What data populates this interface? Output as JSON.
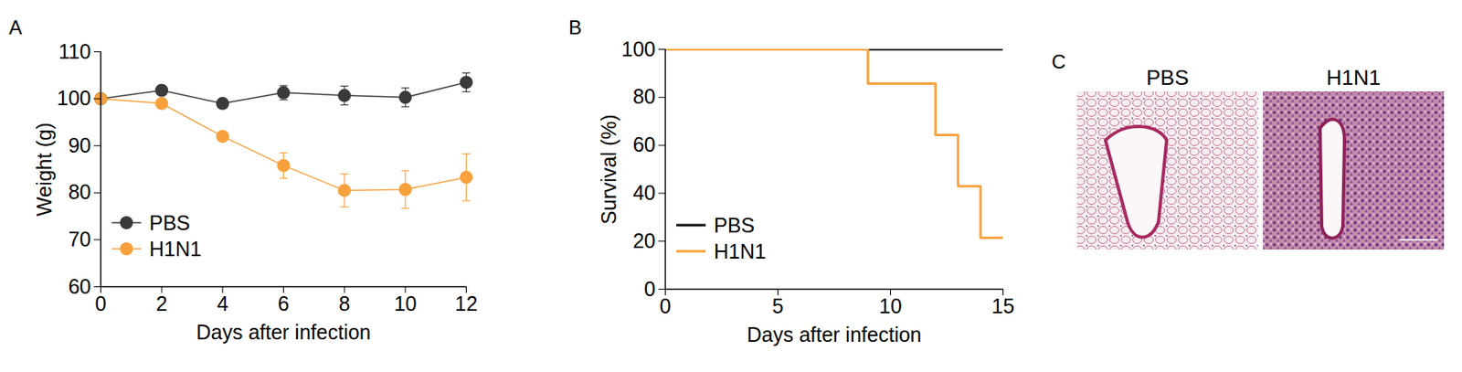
{
  "chart_data": [
    {
      "panel": "A",
      "type": "line",
      "x": [
        0,
        2,
        4,
        6,
        8,
        10,
        12
      ],
      "xlabel": "Days after infection",
      "ylabel": "Weight (g)",
      "xlim": [
        0,
        12
      ],
      "xticks": [
        0,
        2,
        4,
        6,
        8,
        10,
        12
      ],
      "ylim": [
        60,
        110
      ],
      "yticks": [
        60,
        70,
        80,
        90,
        100,
        110
      ],
      "legend": "bottom-left",
      "marker": "circle",
      "series": [
        {
          "name": "PBS",
          "color": "#3a3a3a",
          "values": [
            100,
            101.8,
            99,
            101.3,
            100.7,
            100.3,
            103.5
          ],
          "errors": [
            0.5,
            0.8,
            0.6,
            1.5,
            2,
            2,
            2
          ]
        },
        {
          "name": "H1N1",
          "color": "#f7a13d",
          "values": [
            100,
            99,
            92,
            85.8,
            80.5,
            80.7,
            83.3
          ],
          "errors": [
            0.3,
            0.5,
            0.7,
            2.7,
            3.5,
            4,
            5
          ]
        }
      ]
    },
    {
      "panel": "B",
      "type": "step",
      "x": [
        0,
        9,
        12,
        13,
        14,
        15
      ],
      "xlabel": "Days after infection",
      "ylabel": "Survival (%)",
      "xlim": [
        0,
        15
      ],
      "xticks": [
        0,
        5,
        10,
        15
      ],
      "ylim": [
        0,
        100
      ],
      "yticks": [
        0,
        20,
        40,
        60,
        80,
        100
      ],
      "legend": "bottom-left",
      "series": [
        {
          "name": "PBS",
          "color": "#000000",
          "values": [
            100,
            100,
            100,
            100,
            100,
            100
          ]
        },
        {
          "name": "H1N1",
          "color": "#f7a13d",
          "values": [
            100,
            85.7,
            64.3,
            42.9,
            21.4,
            21.4
          ]
        }
      ]
    },
    {
      "panel": "C",
      "type": "image",
      "labels": [
        "PBS",
        "H1N1"
      ]
    }
  ]
}
